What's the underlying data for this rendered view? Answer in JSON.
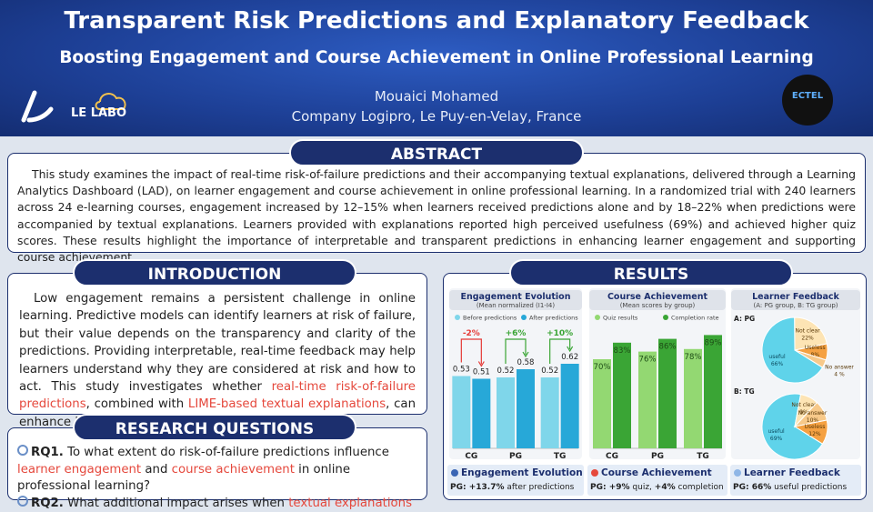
{
  "header": {
    "title": "Transparent Risk Predictions and Explanatory Feedback",
    "subtitle": "Boosting Engagement and Course Achievement in Online Professional Learning",
    "author": "Mouaici Mohamed",
    "affiliation": "Company Logipro, Le Puy-en-Velay, France",
    "logo_left": "LE LABO",
    "logo_right": "ECTEL"
  },
  "abstract": {
    "heading": "ABSTRACT",
    "text": "This study examines the impact of real-time risk-of-failure predictions and their accompanying textual explanations, delivered through a Learning Analytics Dashboard (LAD), on learner engagement and course achievement in online professional learning. In a randomized trial with 240 learners across 24 e-learning courses, engagement increased by 12–15% when learners received predictions alone and by 18–22% when predictions were accompanied by textual explanations. Learners provided with explanations reported high perceived usefulness (69%) and achieved higher quiz scores. These results highlight the importance of interpretable and transparent predictions in enhancing learner engagement and supporting course achievement."
  },
  "introduction": {
    "heading": "INTRODUCTION",
    "parts": [
      {
        "text": "Low engagement remains a persistent challenge in online learning. Predictive models can identify learners at risk of failure, but their value depends on the transparency and clarity of the predictions. Providing interpretable, real-time feedback may help learners understand why they are considered at risk and how to act. This study investigates whether ",
        "highlight": false
      },
      {
        "text": "real-time risk-of-failure predictions",
        "highlight": true
      },
      {
        "text": ", combined with ",
        "highlight": false
      },
      {
        "text": "LIME-based textual explanations",
        "highlight": true
      },
      {
        "text": ", can enhance learner engagement and course achievement.",
        "highlight": false
      }
    ]
  },
  "research_questions": {
    "heading": "RESEARCH QUESTIONS",
    "items": [
      {
        "label": "RQ1.",
        "parts": [
          {
            "text": " To what extent do risk-of-failure predictions influence ",
            "highlight": false
          },
          {
            "text": "learner engagement",
            "highlight": true
          },
          {
            "text": " and ",
            "highlight": false
          },
          {
            "text": "course achievement",
            "highlight": true
          },
          {
            "text": " in online professional learning?",
            "highlight": false
          }
        ]
      },
      {
        "label": "RQ2.",
        "parts": [
          {
            "text": " What additional impact arises when ",
            "highlight": false
          },
          {
            "text": "textual explanations",
            "highlight": true
          }
        ]
      }
    ]
  },
  "results": {
    "heading": "RESULTS",
    "charts": [
      {
        "type": "bar",
        "title": "Engagement Evolution",
        "subtitle": "(Mean normalized (I1-I4)",
        "categories": [
          "CG",
          "PG",
          "TG"
        ],
        "ylim": [
          0,
          0.7
        ],
        "series": [
          {
            "name": "Before predictions",
            "color": "#7fd6ea",
            "values": [
              0.53,
              0.52,
              0.52
            ]
          },
          {
            "name": "After predictions",
            "color": "#27a8d8",
            "values": [
              0.51,
              0.58,
              0.62
            ]
          }
        ],
        "changes": [
          "-2%",
          "+6%",
          "+10%"
        ],
        "change_colors": [
          "#e53935",
          "#3aa535",
          "#3aa535"
        ]
      },
      {
        "type": "bar",
        "title": "Course Achievement",
        "subtitle": "(Mean scores by group)",
        "categories": [
          "CG",
          "PG",
          "TG"
        ],
        "ylim": [
          0,
          100
        ],
        "series": [
          {
            "name": "Quiz results",
            "color": "#93d872",
            "values": [
              70,
              76,
              78
            ],
            "value_labels": [
              "70%",
              "76%",
              "78%"
            ]
          },
          {
            "name": "Completion rate",
            "color": "#3aa535",
            "values": [
              83,
              86,
              89
            ],
            "value_labels": [
              "83%",
              "86%",
              "89%"
            ]
          }
        ]
      },
      {
        "type": "pie",
        "title": "Learner Feedback",
        "subtitle": "(A: PG group, B: TG group)",
        "pies": [
          {
            "label": "A: PG",
            "categories": [
              "useful",
              "Not clear",
              "Useless",
              "No answer"
            ],
            "values": [
              66,
              22,
              8,
              4
            ],
            "value_labels": [
              "66%",
              "22%",
              "8%",
              "4 %"
            ],
            "colors": [
              "#5fd3ea",
              "#fde4b4",
              "#f5a142",
              "#f7c98a"
            ]
          },
          {
            "label": "B: TG",
            "categories": [
              "useful",
              "Not clear",
              "No answer",
              "Useless"
            ],
            "values": [
              69,
              9,
              10,
              12
            ],
            "value_labels": [
              "69%",
              "9%",
              "10%",
              "12%"
            ],
            "colors": [
              "#5fd3ea",
              "#fde4b4",
              "#f7c98a",
              "#f5a142"
            ]
          }
        ]
      }
    ],
    "cards": [
      {
        "title": "Engagement Evolution",
        "parts": [
          {
            "text": "PG: +13.7%",
            "bold": true
          },
          {
            "text": " after predictions",
            "bold": false
          }
        ]
      },
      {
        "title": "Course Achievement",
        "parts": [
          {
            "text": "PG: +9%",
            "bold": true
          },
          {
            "text": " quiz, ",
            "bold": false
          },
          {
            "text": "+4%",
            "bold": true
          },
          {
            "text": " completion",
            "bold": false
          }
        ]
      },
      {
        "title": "Learner Feedback",
        "parts": [
          {
            "text": "PG: 66%",
            "bold": true
          },
          {
            "text": " useful predictions",
            "bold": false
          }
        ]
      }
    ]
  }
}
